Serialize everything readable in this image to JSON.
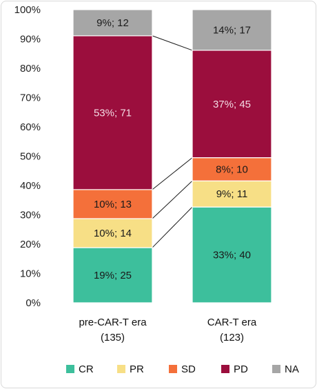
{
  "chart_data": {
    "type": "bar",
    "stacked": true,
    "percent_stacked": true,
    "categories": [
      "pre-CAR-T era\n(135)",
      "CAR-T era\n(123)"
    ],
    "category_lines": [
      [
        "pre-CAR-T era",
        "(135)"
      ],
      [
        "CAR-T era",
        "(123)"
      ]
    ],
    "ylim": [
      0,
      100
    ],
    "yticks": [
      "0%",
      "10%",
      "20%",
      "30%",
      "40%",
      "50%",
      "60%",
      "70%",
      "80%",
      "90%",
      "100%"
    ],
    "grid": false,
    "legend_position": "bottom",
    "series": [
      {
        "name": "CR",
        "color": "#3dbf9c",
        "label_color": "#1a1a1a",
        "percent": [
          19,
          33
        ],
        "counts": [
          25,
          40
        ],
        "labels": [
          "19%; 25",
          "33%; 40"
        ]
      },
      {
        "name": "PR",
        "color": "#f7df86",
        "label_color": "#1a1a1a",
        "percent": [
          10,
          9
        ],
        "counts": [
          14,
          11
        ],
        "labels": [
          "10%; 14",
          "9%; 11"
        ]
      },
      {
        "name": "SD",
        "color": "#f4703a",
        "label_color": "#1a1a1a",
        "percent": [
          10,
          8
        ],
        "counts": [
          13,
          10
        ],
        "labels": [
          "10%; 13",
          "8%; 10"
        ]
      },
      {
        "name": "PD",
        "color": "#9b0e3d",
        "label_color": "#f3dbe4",
        "percent": [
          53,
          37
        ],
        "counts": [
          71,
          45
        ],
        "labels": [
          "53%; 71",
          "37%; 45"
        ]
      },
      {
        "name": "NA",
        "color": "#a6a6a6",
        "label_color": "#1a1a1a",
        "percent": [
          9,
          14
        ],
        "counts": [
          12,
          17
        ],
        "labels": [
          "9%; 12",
          "14%; 17"
        ]
      }
    ]
  }
}
